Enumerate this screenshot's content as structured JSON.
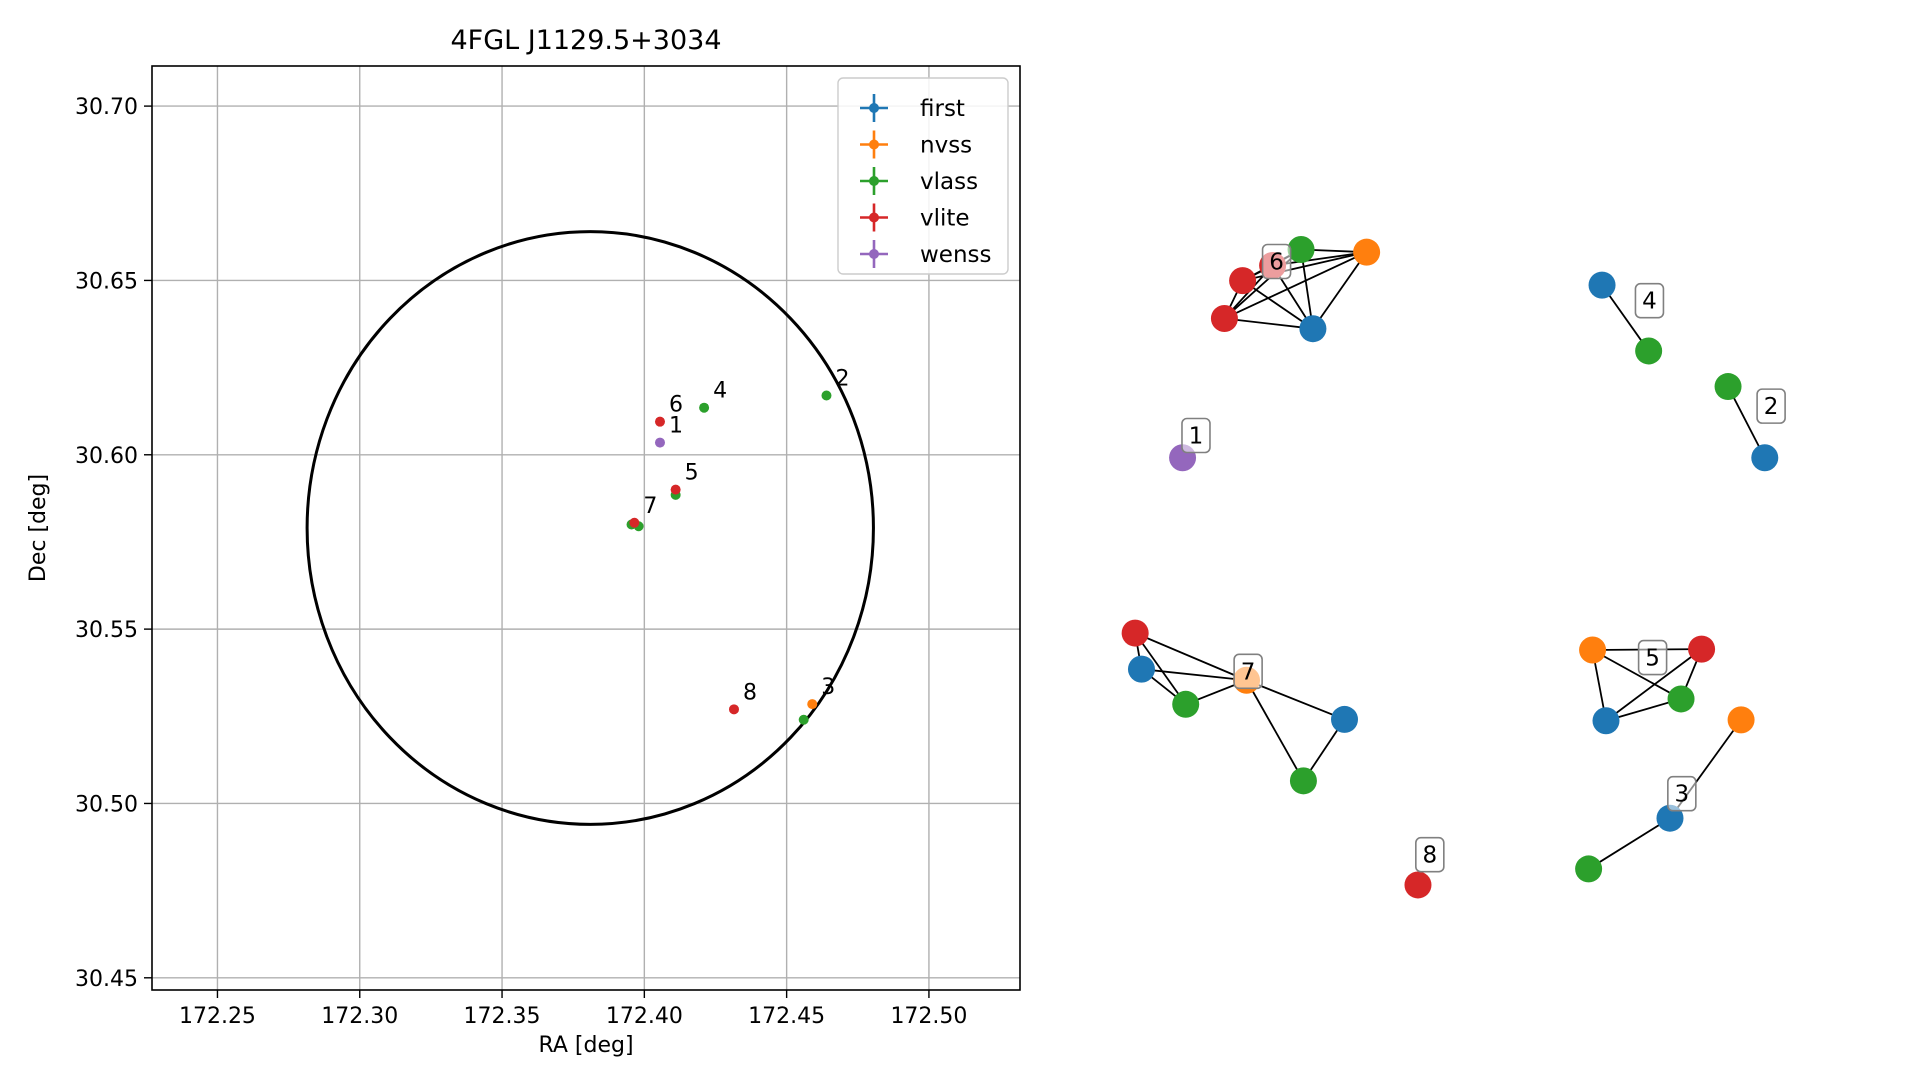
{
  "chart_data": [
    {
      "type": "scatter",
      "title": "4FGL J1129.5+3034",
      "xlabel": "RA [deg]",
      "ylabel": "Dec [deg]",
      "xlim": [
        172.227,
        172.532
      ],
      "ylim": [
        30.4465,
        30.7115
      ],
      "xticks": [
        {
          "value": 172.25,
          "label": "172.25"
        },
        {
          "value": 172.3,
          "label": "172.30"
        },
        {
          "value": 172.35,
          "label": "172.35"
        },
        {
          "value": 172.4,
          "label": "172.40"
        },
        {
          "value": 172.45,
          "label": "172.45"
        },
        {
          "value": 172.5,
          "label": "172.50"
        }
      ],
      "yticks": [
        {
          "value": 30.45,
          "label": "30.45"
        },
        {
          "value": 30.5,
          "label": "30.50"
        },
        {
          "value": 30.55,
          "label": "30.55"
        },
        {
          "value": 30.6,
          "label": "30.60"
        },
        {
          "value": 30.65,
          "label": "30.65"
        },
        {
          "value": 30.7,
          "label": "30.70"
        }
      ],
      "grid": true,
      "legend_position": "top-right",
      "series": [
        {
          "name": "first",
          "color": "#1f77b4",
          "points": []
        },
        {
          "name": "nvss",
          "color": "#ff7f0e",
          "points": [
            {
              "x": 172.459,
              "y": 30.5285
            }
          ]
        },
        {
          "name": "vlass",
          "color": "#2ca02c",
          "points": [
            {
              "x": 172.464,
              "y": 30.617
            },
            {
              "x": 172.421,
              "y": 30.6135
            },
            {
              "x": 172.411,
              "y": 30.5885
            },
            {
              "x": 172.3955,
              "y": 30.58
            },
            {
              "x": 172.398,
              "y": 30.5795
            },
            {
              "x": 172.456,
              "y": 30.524
            }
          ]
        },
        {
          "name": "vlite",
          "color": "#d62728",
          "points": [
            {
              "x": 172.4055,
              "y": 30.6095
            },
            {
              "x": 172.411,
              "y": 30.59
            },
            {
              "x": 172.3965,
              "y": 30.5805
            },
            {
              "x": 172.4315,
              "y": 30.527
            }
          ]
        },
        {
          "name": "wenss",
          "color": "#9467bd",
          "points": [
            {
              "x": 172.4055,
              "y": 30.6035
            }
          ]
        }
      ],
      "ellipse": {
        "center_x": 172.381,
        "center_y": 30.579,
        "semi_axis_ra": 0.0995,
        "semi_axis_dec": 0.085,
        "color": "#000000"
      },
      "point_labels": [
        {
          "text": "6",
          "x": 172.4055,
          "y": 30.6095
        },
        {
          "text": "1",
          "x": 172.4055,
          "y": 30.6035
        },
        {
          "text": "4",
          "x": 172.421,
          "y": 30.6135
        },
        {
          "text": "2",
          "x": 172.464,
          "y": 30.617
        },
        {
          "text": "5",
          "x": 172.411,
          "y": 30.59
        },
        {
          "text": "7",
          "x": 172.3965,
          "y": 30.5805
        },
        {
          "text": "8",
          "x": 172.4315,
          "y": 30.527
        },
        {
          "text": "3",
          "x": 172.459,
          "y": 30.5285
        }
      ]
    },
    {
      "type": "network",
      "colors": {
        "first": "#1f77b4",
        "nvss": "#ff7f0e",
        "vlass": "#2ca02c",
        "vlite": "#d62728",
        "wenss": "#9467bd"
      },
      "groups": [
        {
          "label": "6",
          "label_pos": {
            "x": 0.2235,
            "y": 0.841
          },
          "nodes": [
            {
              "survey": "vlite",
              "x": 0.1805,
              "y": 0.8195
            },
            {
              "survey": "vlite",
              "x": 0.1575,
              "y": 0.777
            },
            {
              "survey": "vlite",
              "x": 0.2185,
              "y": 0.8365
            },
            {
              "survey": "vlass",
              "x": 0.2545,
              "y": 0.8545
            },
            {
              "survey": "nvss",
              "x": 0.3375,
              "y": 0.8515
            },
            {
              "survey": "first",
              "x": 0.2695,
              "y": 0.7655
            }
          ],
          "edges": [
            [
              0,
              1
            ],
            [
              0,
              2
            ],
            [
              0,
              3
            ],
            [
              0,
              4
            ],
            [
              0,
              5
            ],
            [
              1,
              2
            ],
            [
              1,
              3
            ],
            [
              1,
              4
            ],
            [
              1,
              5
            ],
            [
              2,
              3
            ],
            [
              2,
              4
            ],
            [
              2,
              5
            ],
            [
              3,
              4
            ],
            [
              3,
              5
            ],
            [
              4,
              5
            ]
          ]
        },
        {
          "label": "4",
          "label_pos": {
            "x": 0.6955,
            "y": 0.797
          },
          "nodes": [
            {
              "survey": "first",
              "x": 0.6355,
              "y": 0.8145
            },
            {
              "survey": "vlass",
              "x": 0.6945,
              "y": 0.7405
            }
          ],
          "edges": [
            [
              0,
              1
            ]
          ]
        },
        {
          "label": "2",
          "label_pos": {
            "x": 0.8495,
            "y": 0.6785
          },
          "nodes": [
            {
              "survey": "vlass",
              "x": 0.795,
              "y": 0.7005
            },
            {
              "survey": "first",
              "x": 0.8415,
              "y": 0.6205
            }
          ],
          "edges": [
            [
              0,
              1
            ]
          ]
        },
        {
          "label": "1",
          "label_pos": {
            "x": 0.1215,
            "y": 0.6455
          },
          "nodes": [
            {
              "survey": "wenss",
              "x": 0.1045,
              "y": 0.6205
            }
          ],
          "edges": []
        },
        {
          "label": "7",
          "label_pos": {
            "x": 0.1875,
            "y": 0.3805
          },
          "nodes": [
            {
              "survey": "vlite",
              "x": 0.0445,
              "y": 0.4235
            },
            {
              "survey": "first",
              "x": 0.0525,
              "y": 0.383
            },
            {
              "survey": "vlass",
              "x": 0.1085,
              "y": 0.3435
            },
            {
              "survey": "nvss",
              "x": 0.1855,
              "y": 0.3705
            },
            {
              "survey": "first",
              "x": 0.3095,
              "y": 0.3265
            },
            {
              "survey": "vlass",
              "x": 0.2575,
              "y": 0.2575
            }
          ],
          "edges": [
            [
              0,
              1
            ],
            [
              0,
              2
            ],
            [
              0,
              3
            ],
            [
              1,
              2
            ],
            [
              1,
              3
            ],
            [
              2,
              3
            ],
            [
              3,
              4
            ],
            [
              3,
              5
            ],
            [
              4,
              5
            ]
          ]
        },
        {
          "label": "5",
          "label_pos": {
            "x": 0.6995,
            "y": 0.396
          },
          "nodes": [
            {
              "survey": "nvss",
              "x": 0.6235,
              "y": 0.4045
            },
            {
              "survey": "vlite",
              "x": 0.7615,
              "y": 0.4055
            },
            {
              "survey": "first",
              "x": 0.6405,
              "y": 0.325
            },
            {
              "survey": "vlass",
              "x": 0.7355,
              "y": 0.3495
            }
          ],
          "edges": [
            [
              0,
              1
            ],
            [
              0,
              2
            ],
            [
              0,
              3
            ],
            [
              1,
              2
            ],
            [
              1,
              3
            ],
            [
              2,
              3
            ]
          ]
        },
        {
          "label": "3",
          "label_pos": {
            "x": 0.7365,
            "y": 0.243
          },
          "nodes": [
            {
              "survey": "nvss",
              "x": 0.8115,
              "y": 0.326
            },
            {
              "survey": "first",
              "x": 0.7215,
              "y": 0.2155
            },
            {
              "survey": "vlass",
              "x": 0.6185,
              "y": 0.1585
            }
          ],
          "edges": [
            [
              0,
              1
            ],
            [
              1,
              2
            ]
          ]
        },
        {
          "label": "8",
          "label_pos": {
            "x": 0.4175,
            "y": 0.1745
          },
          "nodes": [
            {
              "survey": "vlite",
              "x": 0.4025,
              "y": 0.1405
            }
          ],
          "edges": []
        }
      ]
    }
  ]
}
